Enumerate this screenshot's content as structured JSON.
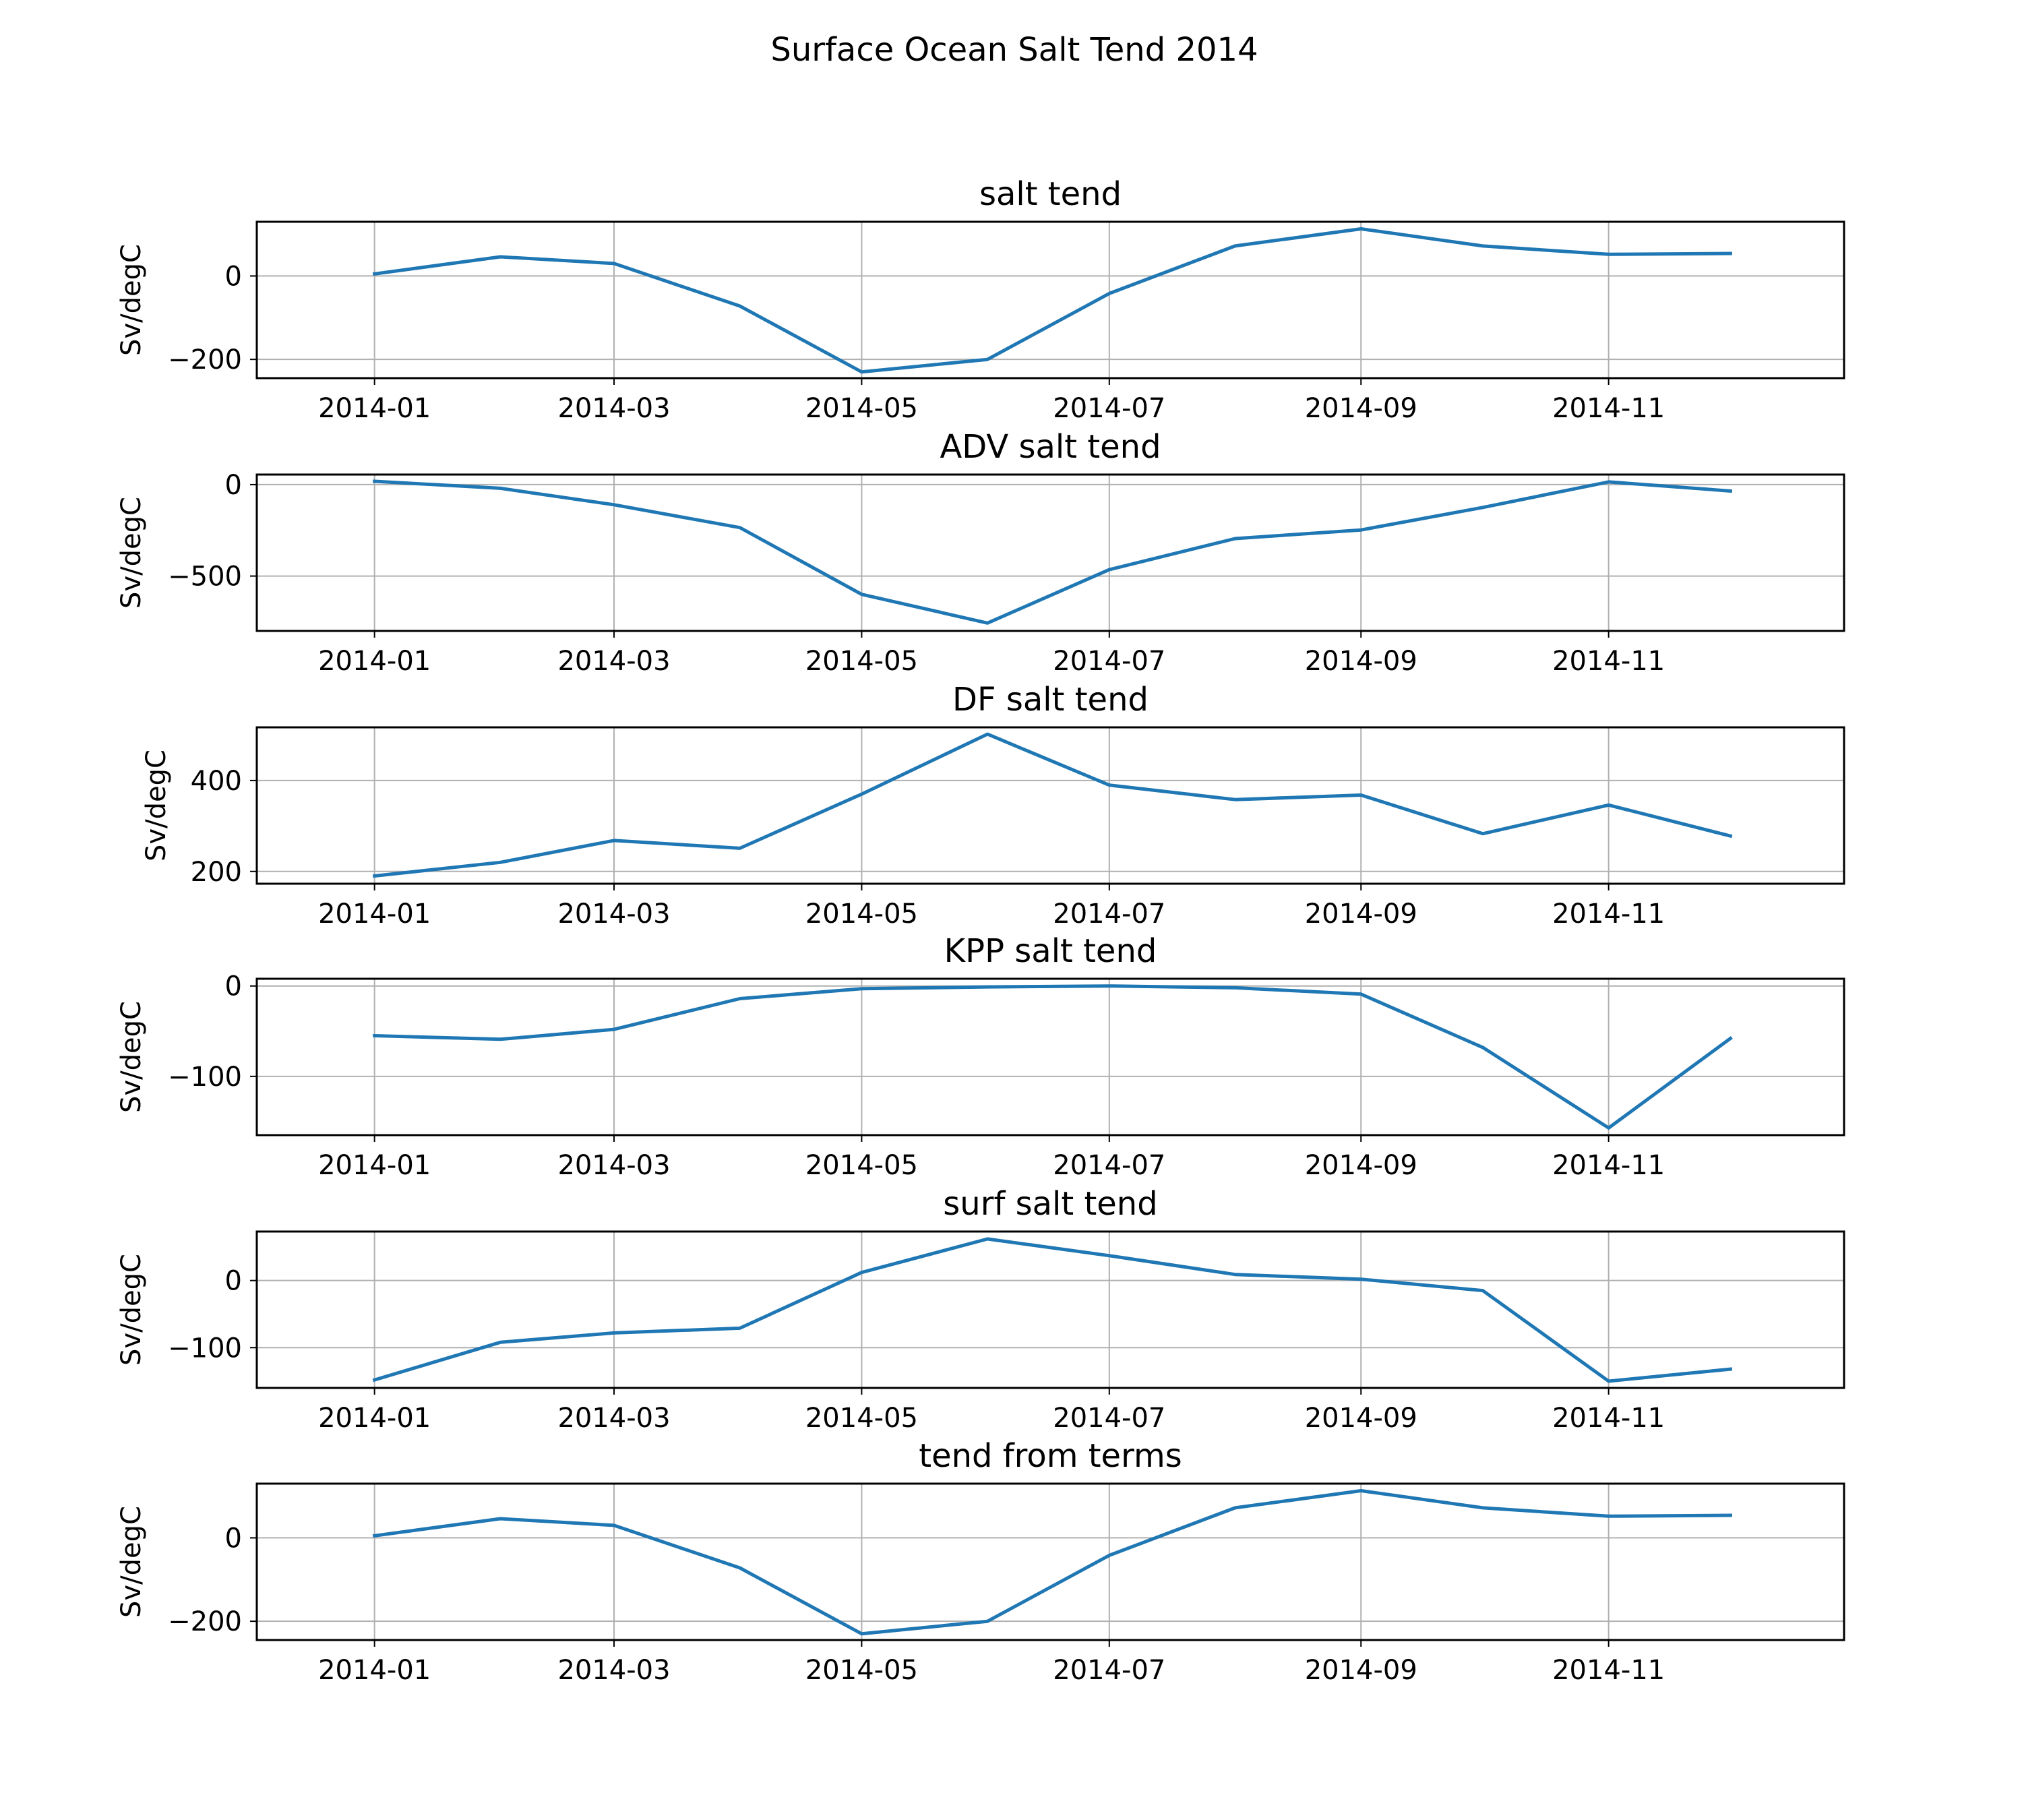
{
  "figure": {
    "title": "Surface Ocean Salt Tend 2014"
  },
  "colors": {
    "line": "#1f77b4",
    "grid": "#b0b0b0"
  },
  "chart_data": [
    {
      "type": "line",
      "title": "salt tend",
      "xlabel": "",
      "ylabel": "Sv/degC",
      "x": [
        "2014-01-01",
        "2014-02-01",
        "2014-03-01",
        "2014-04-01",
        "2014-05-01",
        "2014-06-01",
        "2014-07-01",
        "2014-08-01",
        "2014-09-01",
        "2014-10-01",
        "2014-11-01",
        "2014-12-01"
      ],
      "values": [
        5,
        46,
        30,
        -72,
        -230,
        -200,
        -42,
        72,
        113,
        72,
        52,
        54
      ],
      "ylim": [
        -245,
        130
      ],
      "yticks": [
        0,
        -200
      ],
      "ytick_labels": [
        "0",
        "−200"
      ],
      "xticks": [
        "2014-01-01",
        "2014-03-01",
        "2014-05-01",
        "2014-07-01",
        "2014-09-01",
        "2014-11-01"
      ],
      "xtick_labels": [
        "2014-01",
        "2014-03",
        "2014-05",
        "2014-07",
        "2014-09",
        "2014-11"
      ],
      "grid": true
    },
    {
      "type": "line",
      "title": "ADV salt tend",
      "xlabel": "",
      "ylabel": "Sv/degC",
      "x": [
        "2014-01-01",
        "2014-02-01",
        "2014-03-01",
        "2014-04-01",
        "2014-05-01",
        "2014-06-01",
        "2014-07-01",
        "2014-08-01",
        "2014-09-01",
        "2014-10-01",
        "2014-11-01",
        "2014-12-01"
      ],
      "values": [
        18,
        -20,
        -110,
        -235,
        -600,
        -757,
        -465,
        -295,
        -248,
        -125,
        15,
        -35
      ],
      "ylim": [
        -800,
        55
      ],
      "yticks": [
        0,
        -500
      ],
      "ytick_labels": [
        "0",
        "−500"
      ],
      "xticks": [
        "2014-01-01",
        "2014-03-01",
        "2014-05-01",
        "2014-07-01",
        "2014-09-01",
        "2014-11-01"
      ],
      "xtick_labels": [
        "2014-01",
        "2014-03",
        "2014-05",
        "2014-07",
        "2014-09",
        "2014-11"
      ],
      "grid": true
    },
    {
      "type": "line",
      "title": "DF salt tend",
      "xlabel": "",
      "ylabel": "Sv/degC",
      "x": [
        "2014-01-01",
        "2014-02-01",
        "2014-03-01",
        "2014-04-01",
        "2014-05-01",
        "2014-06-01",
        "2014-07-01",
        "2014-08-01",
        "2014-09-01",
        "2014-10-01",
        "2014-11-01",
        "2014-12-01"
      ],
      "values": [
        190,
        220,
        268,
        251,
        370,
        502,
        390,
        358,
        368,
        283,
        346,
        278
      ],
      "ylim": [
        173,
        517
      ],
      "yticks": [
        200,
        400
      ],
      "ytick_labels": [
        "200",
        "400"
      ],
      "xticks": [
        "2014-01-01",
        "2014-03-01",
        "2014-05-01",
        "2014-07-01",
        "2014-09-01",
        "2014-11-01"
      ],
      "xtick_labels": [
        "2014-01",
        "2014-03",
        "2014-05",
        "2014-07",
        "2014-09",
        "2014-11"
      ],
      "grid": true
    },
    {
      "type": "line",
      "title": "KPP salt tend",
      "xlabel": "",
      "ylabel": "Sv/degC",
      "x": [
        "2014-01-01",
        "2014-02-01",
        "2014-03-01",
        "2014-04-01",
        "2014-05-01",
        "2014-06-01",
        "2014-07-01",
        "2014-08-01",
        "2014-09-01",
        "2014-10-01",
        "2014-11-01",
        "2014-12-01"
      ],
      "values": [
        -55,
        -59,
        -48,
        -14,
        -3,
        -1,
        0,
        -2,
        -9,
        -68,
        -157,
        -58
      ],
      "ylim": [
        -165,
        8
      ],
      "yticks": [
        0,
        -100
      ],
      "ytick_labels": [
        "0",
        "−100"
      ],
      "xticks": [
        "2014-01-01",
        "2014-03-01",
        "2014-05-01",
        "2014-07-01",
        "2014-09-01",
        "2014-11-01"
      ],
      "xtick_labels": [
        "2014-01",
        "2014-03",
        "2014-05",
        "2014-07",
        "2014-09",
        "2014-11"
      ],
      "grid": true
    },
    {
      "type": "line",
      "title": "surf salt tend",
      "xlabel": "",
      "ylabel": "Sv/degC",
      "x": [
        "2014-01-01",
        "2014-02-01",
        "2014-03-01",
        "2014-04-01",
        "2014-05-01",
        "2014-06-01",
        "2014-07-01",
        "2014-08-01",
        "2014-09-01",
        "2014-10-01",
        "2014-11-01",
        "2014-12-01"
      ],
      "values": [
        -148,
        -92,
        -78,
        -71,
        12,
        62,
        37,
        9,
        2,
        -15,
        -150,
        -132
      ],
      "ylim": [
        -160,
        73
      ],
      "yticks": [
        0,
        -100
      ],
      "ytick_labels": [
        "0",
        "−100"
      ],
      "xticks": [
        "2014-01-01",
        "2014-03-01",
        "2014-05-01",
        "2014-07-01",
        "2014-09-01",
        "2014-11-01"
      ],
      "xtick_labels": [
        "2014-01",
        "2014-03",
        "2014-05",
        "2014-07",
        "2014-09",
        "2014-11"
      ],
      "grid": true
    },
    {
      "type": "line",
      "title": "tend from terms",
      "xlabel": "",
      "ylabel": "Sv/degC",
      "x": [
        "2014-01-01",
        "2014-02-01",
        "2014-03-01",
        "2014-04-01",
        "2014-05-01",
        "2014-06-01",
        "2014-07-01",
        "2014-08-01",
        "2014-09-01",
        "2014-10-01",
        "2014-11-01",
        "2014-12-01"
      ],
      "values": [
        5,
        46,
        30,
        -72,
        -230,
        -200,
        -42,
        72,
        113,
        72,
        52,
        54
      ],
      "ylim": [
        -245,
        130
      ],
      "yticks": [
        0,
        -200
      ],
      "ytick_labels": [
        "0",
        "−200"
      ],
      "xticks": [
        "2014-01-01",
        "2014-03-01",
        "2014-05-01",
        "2014-07-01",
        "2014-09-01",
        "2014-11-01"
      ],
      "xtick_labels": [
        "2014-01",
        "2014-03",
        "2014-05",
        "2014-07",
        "2014-09",
        "2014-11"
      ],
      "grid": true
    }
  ]
}
